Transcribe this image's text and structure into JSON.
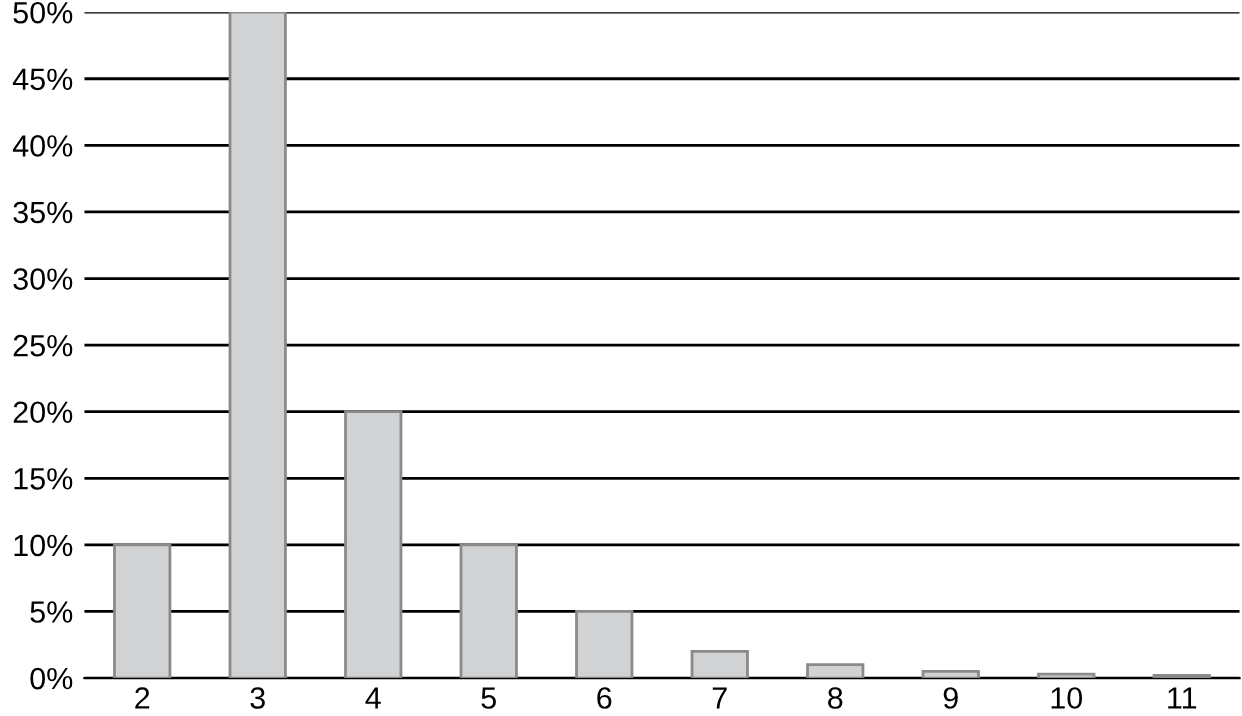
{
  "chart_data": {
    "type": "bar",
    "categories": [
      "2",
      "3",
      "4",
      "5",
      "6",
      "7",
      "8",
      "9",
      "10",
      "11"
    ],
    "values": [
      10,
      50,
      20,
      10,
      5,
      2,
      1,
      0.5,
      0.3,
      0.2
    ],
    "color": "#d0d2d3",
    "ylim": [
      0,
      50
    ],
    "yticks": [
      {
        "value": 0,
        "label": "0%"
      },
      {
        "value": 5,
        "label": "5%"
      },
      {
        "value": 10,
        "label": "10%"
      },
      {
        "value": 15,
        "label": "15%"
      },
      {
        "value": 20,
        "label": "20%"
      },
      {
        "value": 25,
        "label": "25%"
      },
      {
        "value": 30,
        "label": "30%"
      },
      {
        "value": 35,
        "label": "35%"
      },
      {
        "value": 40,
        "label": "40%"
      },
      {
        "value": 45,
        "label": "45%"
      },
      {
        "value": 50,
        "label": "50%"
      }
    ],
    "grid": "y"
  }
}
